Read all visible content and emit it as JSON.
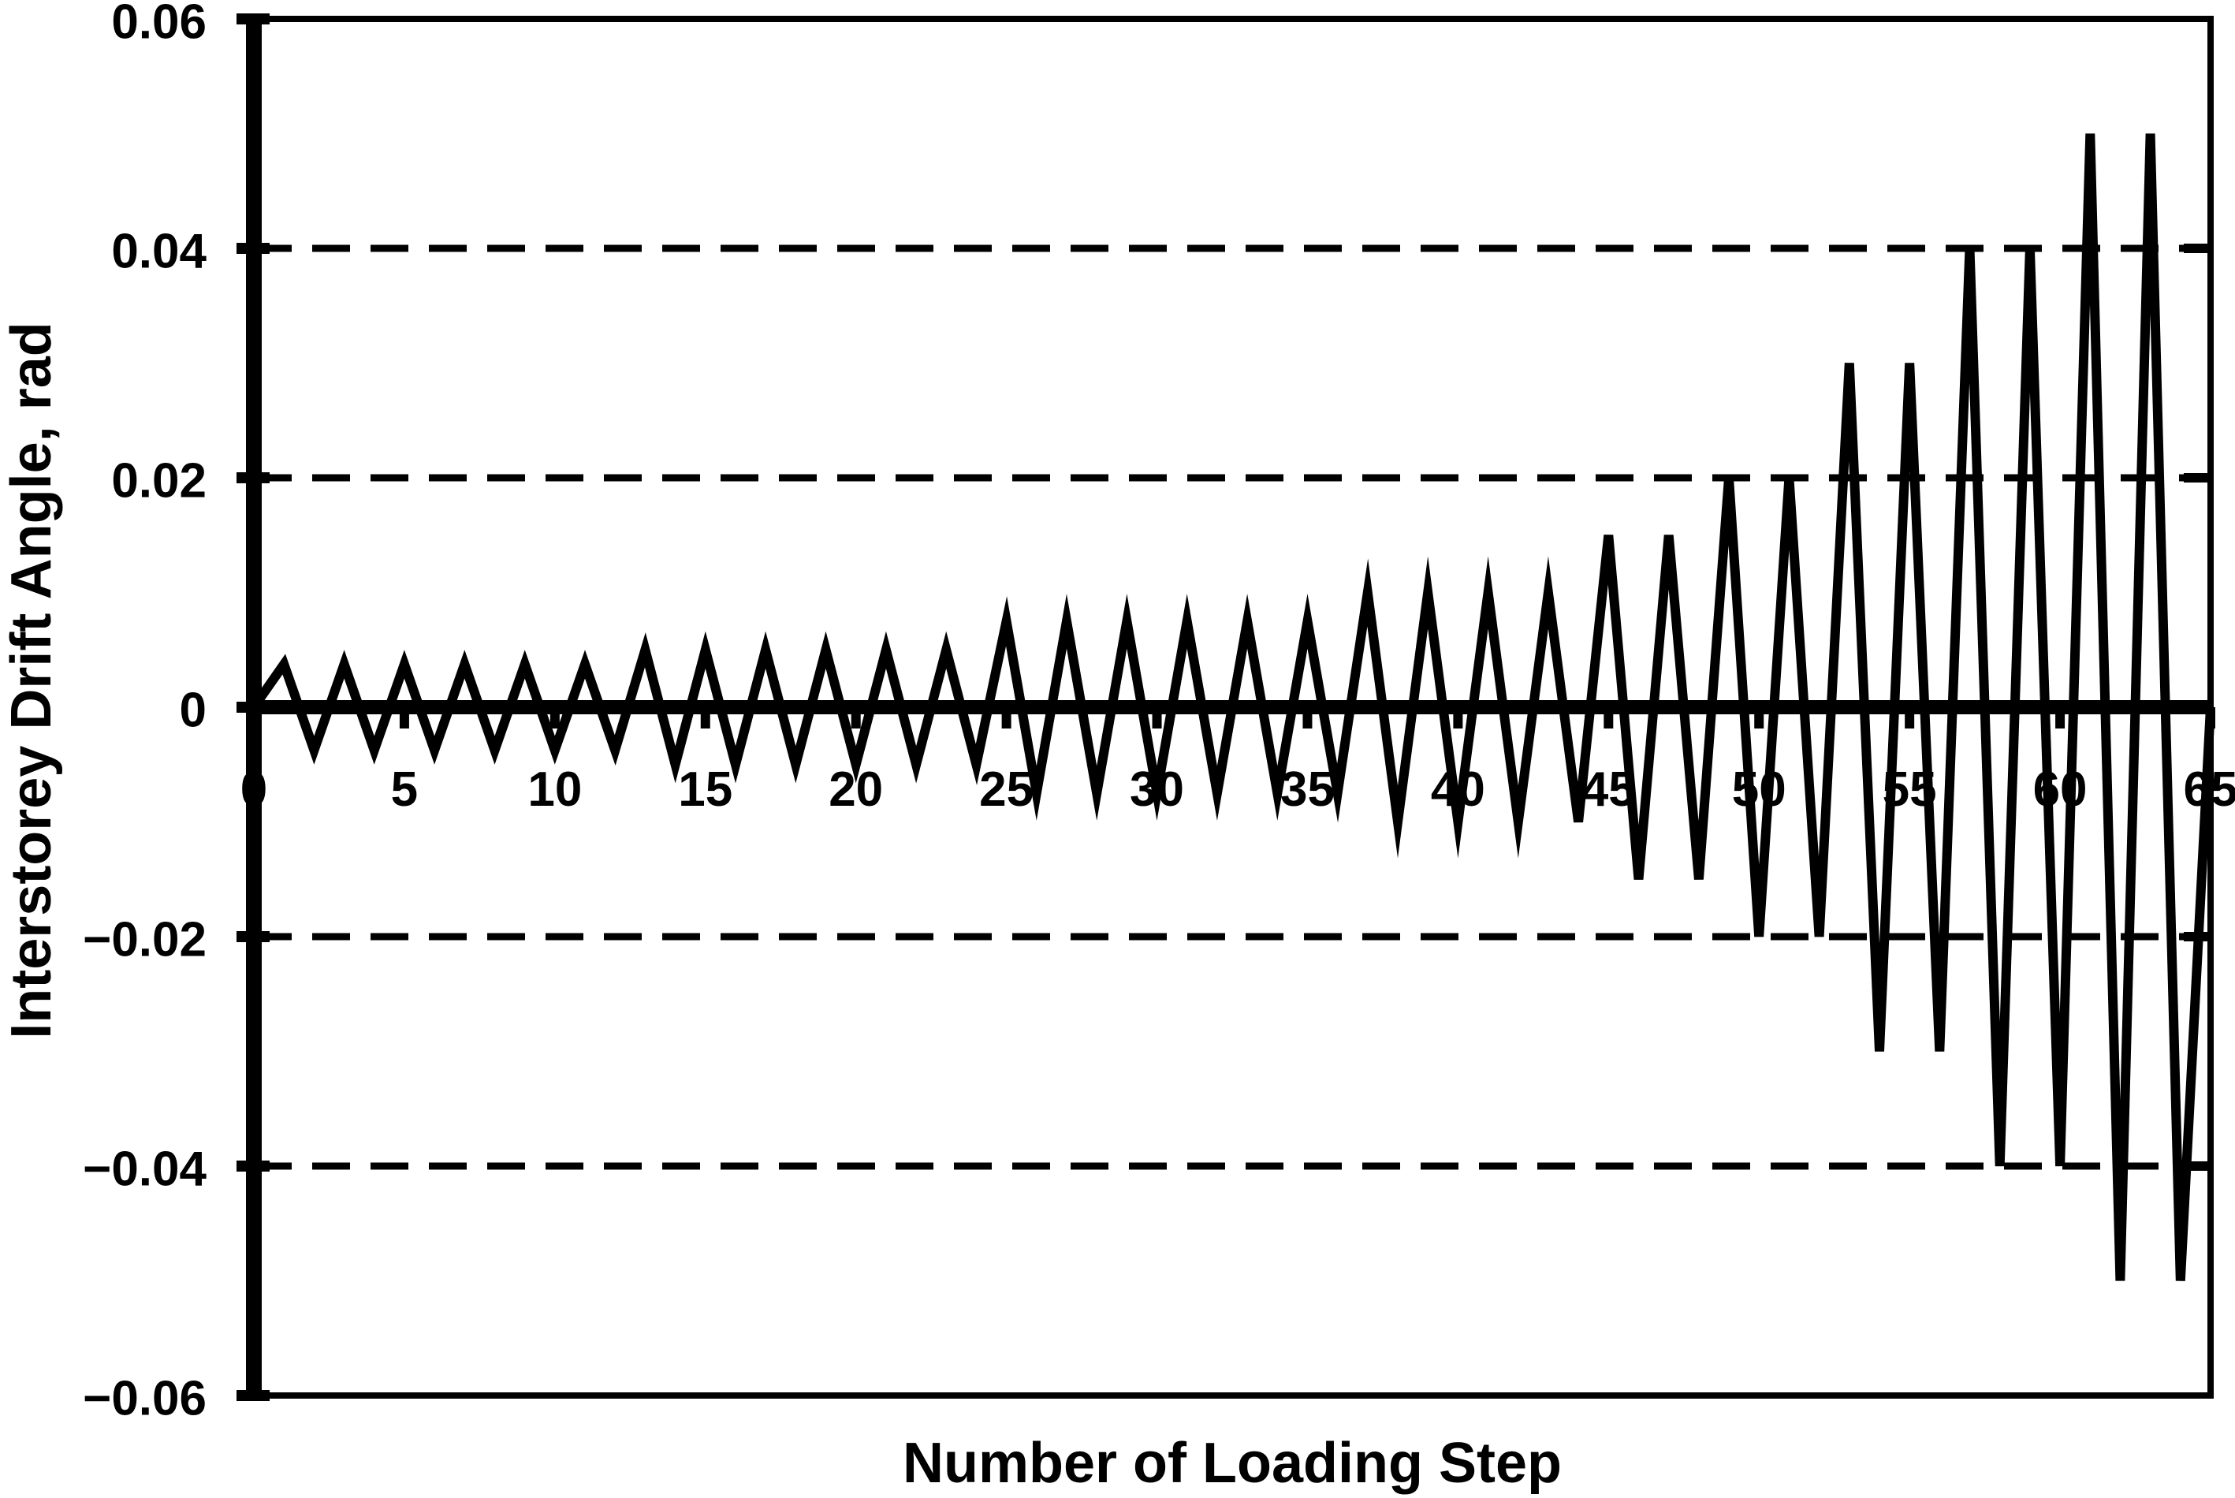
{
  "figure": {
    "background_color": "#ffffff",
    "ink_color": "#000000"
  },
  "chart_data": {
    "type": "line",
    "title": "",
    "xlabel": "Number of Loading Step",
    "ylabel": "Interstorey Drift Angle, rad",
    "xlim": [
      0,
      65
    ],
    "ylim": [
      -0.06,
      0.06
    ],
    "grid": "horizontal-dashed",
    "legend": "none",
    "x_tick_values": [
      0,
      5,
      10,
      15,
      20,
      25,
      30,
      35,
      40,
      45,
      50,
      55,
      60,
      65
    ],
    "x_tick_labels": [
      "0",
      "5",
      "10",
      "15",
      "20",
      "25",
      "30",
      "35",
      "40",
      "45",
      "50",
      "55",
      "60",
      "65"
    ],
    "y_tick_values": [
      0.06,
      0.04,
      0.02,
      0,
      -0.02,
      -0.04,
      -0.06
    ],
    "y_tick_labels": [
      "0.06",
      "0.04",
      "0.02",
      "0",
      "−0.02",
      "−0.04",
      "−0.06"
    ],
    "grid_y_values": [
      0.04,
      0.02,
      -0.02,
      -0.04
    ],
    "loading_protocol_cycles": [
      {
        "amplitude_rad": 0.00375,
        "cycles": 6
      },
      {
        "amplitude_rad": 0.005,
        "cycles": 6
      },
      {
        "amplitude_rad": 0.0075,
        "cycles": 6
      },
      {
        "amplitude_rad": 0.01,
        "cycles": 4
      },
      {
        "amplitude_rad": 0.015,
        "cycles": 2
      },
      {
        "amplitude_rad": 0.02,
        "cycles": 2
      },
      {
        "amplitude_rad": 0.03,
        "cycles": 2
      },
      {
        "amplitude_rad": 0.04,
        "cycles": 2
      },
      {
        "amplitude_rad": 0.05,
        "cycles": 2
      }
    ],
    "series": [
      {
        "name": "interstorey-drift-history",
        "x": [
          0,
          1,
          2,
          3,
          4,
          5,
          6,
          7,
          8,
          9,
          10,
          11,
          12,
          13,
          14,
          15,
          16,
          17,
          18,
          19,
          20,
          21,
          22,
          23,
          24,
          25,
          26,
          27,
          28,
          29,
          30,
          31,
          32,
          33,
          34,
          35,
          36,
          37,
          38,
          39,
          40,
          41,
          42,
          43,
          44,
          45,
          46,
          47,
          48,
          49,
          50,
          51,
          52,
          53,
          54,
          55,
          56,
          57,
          58,
          59,
          60,
          61,
          62,
          63,
          64,
          65
        ],
        "y": [
          0,
          0.00375,
          -0.00375,
          0.00375,
          -0.00375,
          0.00375,
          -0.00375,
          0.00375,
          -0.00375,
          0.00375,
          -0.00375,
          0.00375,
          -0.00375,
          0.005,
          -0.005,
          0.005,
          -0.005,
          0.005,
          -0.005,
          0.005,
          -0.005,
          0.005,
          -0.005,
          0.005,
          -0.005,
          0.0075,
          -0.0075,
          0.0075,
          -0.0075,
          0.0075,
          -0.0075,
          0.0075,
          -0.0075,
          0.0075,
          -0.0075,
          0.0075,
          -0.0075,
          0.01,
          -0.01,
          0.01,
          -0.01,
          0.01,
          -0.01,
          0.01,
          -0.01,
          0.015,
          -0.015,
          0.015,
          -0.015,
          0.02,
          -0.02,
          0.02,
          -0.02,
          0.03,
          -0.03,
          0.03,
          -0.03,
          0.04,
          -0.04,
          0.04,
          -0.04,
          0.05,
          -0.05,
          0.05,
          -0.05,
          0
        ]
      }
    ]
  }
}
